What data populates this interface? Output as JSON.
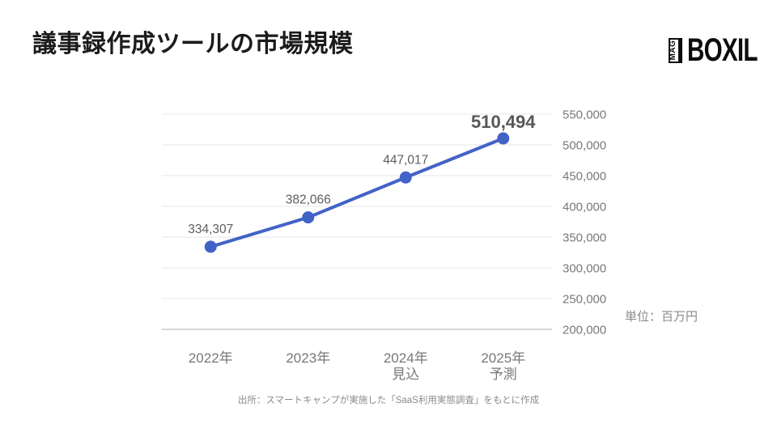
{
  "page": {
    "title": "議事録作成ツールの市場規模",
    "logo": {
      "mag": "MAG",
      "brand": "BOXIL"
    },
    "unit_note": "単位：百万円",
    "source": "出所：スマートキャンプが実施した「SaaS利用実態調査」をもとに作成"
  },
  "colors": {
    "line": "#4263c6",
    "grid": "#e7e7e7",
    "axis_line": "#cccccc",
    "value_label": "#5e5e5e",
    "value_label_emph": "#575757",
    "tick_gray": "#787878",
    "note_gray": "#8a8a8a",
    "title_black": "#1b1b1b"
  },
  "chart_data": {
    "type": "line",
    "title": "議事録作成ツールの市場規模",
    "categories": [
      "2022年",
      "2023年",
      "2024年\n見込",
      "2025年\n予測"
    ],
    "values": [
      334307,
      382066,
      447017,
      510494
    ],
    "value_labels": [
      "334,307",
      "382,066",
      "447,017",
      "510,494"
    ],
    "emphasized_index": 3,
    "unit": "単位：百万円",
    "ylim": [
      200000,
      550000
    ],
    "ytick_step": 50000,
    "yticks": [
      "200,000",
      "250,000",
      "300,000",
      "350,000",
      "400,000",
      "450,000",
      "500,000",
      "550,000"
    ],
    "yticks_side": "right",
    "grid": true,
    "legend": "none"
  }
}
